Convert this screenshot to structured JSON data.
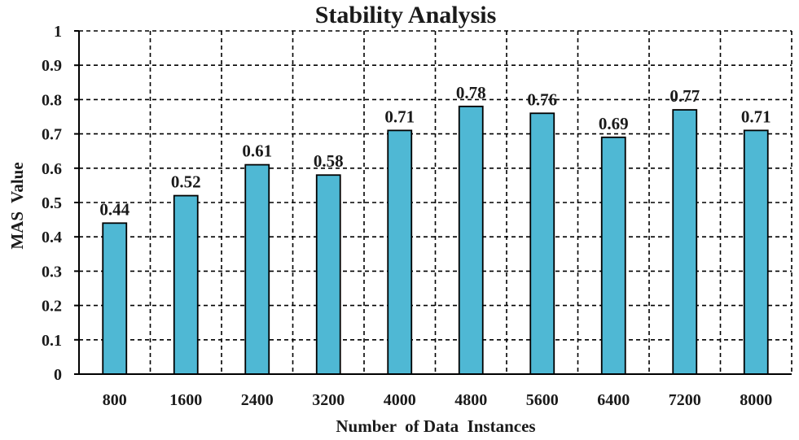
{
  "chart_data": {
    "type": "bar",
    "title": "Stability Analysis",
    "xlabel": "Number  of Data  Instances",
    "ylabel": "MAS  Value",
    "categories": [
      "800",
      "1600",
      "2400",
      "3200",
      "4000",
      "4800",
      "5600",
      "6400",
      "7200",
      "8000"
    ],
    "values": [
      0.44,
      0.52,
      0.61,
      0.58,
      0.71,
      0.78,
      0.76,
      0.69,
      0.77,
      0.71
    ],
    "data_labels": [
      "0.44",
      "0.52",
      "0.61",
      "0.58",
      "0.71",
      "0.78",
      "0.76",
      "0.69",
      "0.77",
      "0.71"
    ],
    "yticks": [
      "0",
      "0.1",
      "0.2",
      "0.3",
      "0.4",
      "0.5",
      "0.6",
      "0.7",
      "0.8",
      "0.9",
      "1"
    ],
    "ylim": [
      0,
      1
    ],
    "grid": true,
    "bar_color": "#4fb8d4",
    "legend": "none"
  }
}
